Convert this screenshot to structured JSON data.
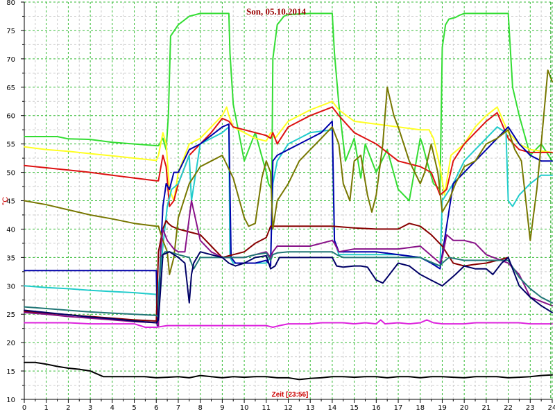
{
  "chart_data": {
    "type": "line",
    "title": "Son, 05.10.2014",
    "ylabel": "°C",
    "xlabel": "Zeit [23:56]",
    "xlim": [
      0,
      24
    ],
    "ylim": [
      10,
      80
    ],
    "x_ticks": [
      "0",
      "1",
      "2",
      "3",
      "4",
      "5",
      "6",
      "7",
      "8",
      "9",
      "10",
      "11",
      "12",
      "13",
      "14",
      "15",
      "16",
      "17",
      "18",
      "19",
      "20",
      "21",
      "22",
      "23",
      "24"
    ],
    "y_ticks": [
      "10",
      "15",
      "20",
      "25",
      "30",
      "35",
      "40",
      "45",
      "50",
      "55",
      "60",
      "65",
      "70",
      "75",
      "80"
    ],
    "grid": true,
    "colors": {
      "title": "#990000",
      "ylabel": "#cc0000",
      "xlabel": "#cc0000",
      "grid_major": "#33bb33",
      "grid_minor": "#cccccc",
      "axis": "#000000",
      "cursor": "#009900"
    },
    "series": [
      {
        "color": "#33dd33",
        "x": [
          0,
          1.5,
          2,
          3,
          4,
          5,
          6,
          6.1,
          6.3,
          6.45,
          6.55,
          6.65,
          7,
          7.5,
          8,
          8.5,
          9,
          9.3,
          9.35,
          9.5,
          10,
          10.5,
          11,
          11.1,
          11.25,
          11.3,
          11.5,
          11.8,
          12,
          13,
          14,
          14.1,
          14.3,
          14.6,
          15,
          15.3,
          15.5,
          16,
          16.5,
          17,
          17.5,
          18,
          18.1,
          18.3,
          18.6,
          18.9,
          19,
          19.15,
          19.3,
          19.6,
          19.8,
          20,
          21,
          21.5,
          22,
          22.2,
          22.5,
          23,
          23.5,
          24
        ],
        "y": [
          56.3,
          56.3,
          55.9,
          55.8,
          55.3,
          55,
          54.7,
          54.7,
          56,
          54,
          60,
          74,
          76,
          77.5,
          78,
          78,
          78,
          78,
          71,
          62,
          52,
          57,
          50,
          48,
          47,
          70,
          76,
          77.5,
          77.8,
          78,
          78,
          71,
          62,
          52,
          56,
          49,
          55,
          50,
          54,
          47,
          45,
          56,
          55,
          52,
          48,
          47,
          72,
          76,
          77,
          77.3,
          77.7,
          78,
          78,
          78,
          78,
          65,
          60,
          53,
          55,
          52
        ]
      },
      {
        "color": "#ffff22",
        "x": [
          0,
          1,
          2,
          3,
          4,
          5,
          6,
          6.1,
          6.3,
          6.45,
          6.6,
          6.8,
          7,
          7.5,
          8,
          8.5,
          9,
          9.2,
          9.3,
          9.5,
          10,
          10.5,
          11,
          11.2,
          11.4,
          12,
          13,
          14,
          14.3,
          15,
          16,
          17,
          18,
          18.4,
          18.6,
          18.9,
          19.1,
          19.4,
          20,
          20.5,
          21,
          21.5,
          22,
          22.5,
          23,
          24
        ],
        "y": [
          54.5,
          54,
          53.7,
          53.3,
          52.9,
          52.5,
          52.1,
          53,
          57,
          55,
          47,
          45,
          50,
          55,
          56,
          58,
          60,
          61.5,
          60,
          58,
          57,
          56,
          55.5,
          57,
          56,
          59,
          61,
          62.5,
          61,
          59,
          58.5,
          58,
          57.5,
          57.5,
          56,
          51,
          46,
          53,
          55,
          58,
          60,
          61.5,
          57,
          55,
          54,
          53.5
        ]
      },
      {
        "color": "#dd1111",
        "x": [
          0,
          1,
          2,
          3,
          4,
          5,
          6,
          6.1,
          6.3,
          6.45,
          6.6,
          6.8,
          7,
          7.5,
          8,
          8.5,
          9,
          9.3,
          9.5,
          10,
          10.5,
          11,
          11.2,
          11.3,
          11.5,
          12,
          13,
          14,
          14.3,
          15,
          15.5,
          16,
          17,
          18,
          18.5,
          18.9,
          19.2,
          19.5,
          20,
          20.5,
          21,
          21.5,
          22,
          22.5,
          23,
          24
        ],
        "y": [
          51.2,
          50.8,
          50.4,
          50,
          49.5,
          49,
          48.5,
          48.5,
          53,
          51,
          44,
          45,
          48,
          53,
          55,
          57,
          59.5,
          59,
          58,
          57.5,
          57,
          56.5,
          56,
          57,
          55,
          58,
          60,
          61.5,
          60,
          57,
          56,
          55,
          52,
          51,
          50,
          46,
          47,
          52,
          55,
          57,
          59,
          60.5,
          56,
          54,
          53.5,
          53.5
        ]
      },
      {
        "color": "#22cccc",
        "x": [
          0,
          1,
          2,
          3,
          4,
          5,
          6,
          6.05,
          6.1,
          6.2,
          6.3,
          6.5,
          6.7,
          7,
          7.2,
          7.5,
          7.6,
          8,
          8.5,
          9,
          9.3,
          9.35,
          9.5,
          10,
          10.5,
          11,
          11.2,
          11.3,
          11.5,
          12,
          12.5,
          13,
          14,
          14.1,
          14.3,
          14.6,
          15,
          16,
          17,
          18,
          18.5,
          18.9,
          19,
          19.5,
          20,
          20.5,
          21,
          21.5,
          21.9,
          22,
          22.2,
          22.5,
          23,
          23.5,
          24
        ],
        "y": [
          30,
          29.7,
          29.5,
          29.2,
          29,
          28.8,
          28.5,
          23,
          30,
          33,
          37,
          44,
          47,
          48,
          50,
          53,
          45,
          55,
          56,
          57,
          58,
          35,
          34,
          34,
          34,
          34,
          35,
          48,
          52,
          55,
          56,
          57,
          57.5,
          38,
          35.5,
          35.5,
          35.5,
          35.5,
          35.5,
          35,
          34,
          33.5,
          45,
          48,
          52,
          54,
          56,
          58,
          57,
          45,
          44,
          46,
          48,
          49.5,
          49.5
        ]
      },
      {
        "color": "#0000aa",
        "x": [
          0,
          6.0,
          6.05,
          6.1,
          6.2,
          6.3,
          6.45,
          6.6,
          6.8,
          7,
          7.5,
          8,
          8.5,
          9,
          9.3,
          9.4,
          9.6,
          10,
          10.5,
          11,
          11.2,
          11.3,
          11.5,
          12,
          12.5,
          13,
          13.5,
          14,
          14.1,
          14.3,
          14.6,
          15,
          16,
          17,
          18,
          18.5,
          18.9,
          19.1,
          19.5,
          20,
          20.5,
          21,
          21.5,
          22,
          22.5,
          23,
          23.5,
          24
        ],
        "y": [
          32.7,
          32.7,
          23,
          26,
          36,
          44,
          48,
          47,
          50,
          50,
          54,
          55,
          56.5,
          58,
          58.5,
          35,
          34,
          34,
          34,
          34.5,
          33.5,
          52,
          53,
          54,
          55,
          56,
          57,
          59,
          38,
          36,
          36,
          36,
          36,
          35.5,
          35,
          34,
          33,
          38,
          48,
          50,
          52,
          54,
          56,
          58,
          55,
          53,
          52,
          52
        ]
      },
      {
        "color": "#880000",
        "x": [
          0,
          1,
          2,
          3,
          4,
          5,
          6,
          6.1,
          6.3,
          6.45,
          6.55,
          6.7,
          7,
          7.5,
          8,
          8.5,
          9,
          9.5,
          10,
          10.5,
          11,
          11.2,
          11.5,
          12,
          13,
          14,
          15,
          16,
          17,
          17.5,
          18,
          18.5,
          19,
          19.5,
          20,
          20.5,
          21,
          21.5,
          22
        ],
        "y": [
          25.5,
          25.2,
          24.9,
          24.6,
          24.3,
          24,
          23.8,
          36,
          40,
          41.5,
          41,
          40.5,
          40,
          39.5,
          39,
          37,
          35,
          35.5,
          36,
          37.5,
          38.5,
          40.5,
          40.5,
          40.5,
          40.5,
          40.5,
          40.2,
          40,
          40,
          41,
          40.5,
          39,
          37,
          34,
          33.5,
          33.8,
          34,
          34.5,
          35
        ]
      },
      {
        "color": "#777700",
        "x": [
          0,
          1,
          2,
          3,
          4,
          5,
          6,
          6.1,
          6.3,
          6.5,
          6.6,
          6.8,
          7,
          7.5,
          8,
          8.5,
          9,
          9.5,
          10,
          10.2,
          10.5,
          10.8,
          11,
          11.2,
          11.3,
          11.5,
          12,
          12.5,
          13,
          13.5,
          14,
          14.3,
          14.5,
          14.8,
          15,
          15.3,
          15.6,
          15.8,
          16,
          16.3,
          16.5,
          16.8,
          17,
          17.5,
          18,
          18.2,
          18.5,
          18.8,
          19,
          19.3,
          19.6,
          20,
          20.5,
          21,
          21.5,
          22,
          22.3,
          22.6,
          23,
          23.3,
          23.5,
          23.8,
          24
        ],
        "y": [
          45,
          44.3,
          43.4,
          42.5,
          41.8,
          41,
          40.5,
          40.5,
          38,
          36,
          32,
          35,
          42,
          48,
          51,
          52,
          53,
          49,
          42,
          40.5,
          41,
          49,
          52,
          50,
          40,
          45,
          48,
          52,
          54,
          56,
          58,
          55,
          48,
          45,
          52,
          53,
          46,
          43,
          46,
          55,
          65,
          60,
          58,
          52,
          48,
          50,
          55,
          50,
          43,
          45,
          48,
          51,
          52,
          55,
          56,
          57.5,
          54,
          52,
          38,
          47,
          55,
          68,
          66
        ]
      },
      {
        "color": "#881188",
        "x": [
          0,
          1,
          2,
          3,
          4,
          5,
          6,
          6.1,
          6.2,
          6.3,
          6.5,
          6.8,
          7,
          7.3,
          7.5,
          7.6,
          8,
          8.5,
          9,
          9.5,
          10,
          10.5,
          11,
          11.2,
          11.3,
          11.5,
          12,
          13,
          14,
          14.1,
          14.3,
          15,
          16,
          17,
          18,
          18.9,
          19,
          19.2,
          19.5,
          20,
          20.5,
          21,
          22,
          22.5,
          23,
          24
        ],
        "y": [
          25.3,
          25,
          24.6,
          24.3,
          24,
          23.7,
          23.5,
          23,
          36,
          40,
          38,
          36.5,
          36,
          36,
          42,
          45,
          38,
          36,
          35,
          35,
          35,
          35.5,
          36,
          35,
          36,
          37,
          37,
          37,
          38,
          37.5,
          36,
          36.5,
          36.5,
          36.5,
          37,
          34,
          35,
          39,
          38,
          38,
          37.5,
          35.5,
          34,
          32,
          28,
          26.5
        ]
      },
      {
        "color": "#227777",
        "x": [
          0,
          1,
          2,
          3,
          4,
          5,
          6,
          6.1,
          6.2,
          6.4,
          6.6,
          7,
          7.5,
          7.7,
          8,
          9,
          10,
          10.5,
          11,
          11.2,
          11.3,
          11.5,
          12,
          13,
          14,
          14.2,
          14.5,
          15,
          16,
          17,
          18,
          18.9,
          19,
          19.3,
          20,
          21,
          21.5,
          22,
          22.5,
          23,
          23.5,
          24
        ],
        "y": [
          26.3,
          26,
          25.7,
          25.4,
          25.2,
          25,
          24.8,
          24.5,
          35,
          36,
          36,
          35.5,
          35,
          33,
          35,
          35,
          35,
          35.5,
          35.8,
          34.5,
          35.5,
          35.8,
          36,
          36,
          36,
          35.5,
          35,
          35,
          35,
          35,
          35,
          33.5,
          34,
          35,
          34.5,
          34.5,
          34.5,
          34.5,
          31.5,
          29.5,
          28,
          27
        ]
      },
      {
        "color": "#000066",
        "x": [
          0,
          1,
          2,
          3,
          4,
          5,
          6,
          6.1,
          6.3,
          6.6,
          7,
          7.3,
          7.5,
          7.6,
          7.7,
          8,
          8.5,
          9,
          9.3,
          9.6,
          10,
          10.5,
          11,
          11.2,
          11.4,
          11.6,
          12,
          12.5,
          13,
          14,
          14.2,
          14.5,
          15,
          15.3,
          15.6,
          16,
          16.3,
          16.6,
          17,
          17.5,
          18,
          18.5,
          19,
          19.3,
          19.6,
          20,
          20.5,
          21,
          21.3,
          21.7,
          22,
          22.5,
          23,
          23.5,
          24
        ],
        "y": [
          25.7,
          25.3,
          24.9,
          24.5,
          24.2,
          23.8,
          23.5,
          24,
          35.5,
          36,
          35,
          34,
          27,
          32,
          34,
          36,
          35.5,
          35,
          34,
          33.5,
          34,
          35,
          35.3,
          33,
          33.5,
          35,
          35,
          35,
          35,
          35,
          33.5,
          33.3,
          33.5,
          33.5,
          33.3,
          31,
          30.5,
          32,
          34,
          33.5,
          32,
          31,
          30,
          31,
          32,
          33.5,
          33,
          33,
          32,
          34,
          35,
          30,
          28,
          26.5,
          25.3
        ]
      },
      {
        "color": "#dd22dd",
        "x": [
          0,
          1,
          2,
          3,
          4,
          5,
          5.5,
          6,
          6.5,
          7,
          8,
          9,
          10,
          11,
          11.3,
          11.6,
          12,
          13,
          13.5,
          14,
          14.5,
          15,
          15.5,
          16,
          16.2,
          16.4,
          17,
          17.5,
          18,
          18.3,
          18.6,
          19,
          20,
          20.5,
          21,
          21.5,
          22,
          22.5,
          23,
          24
        ],
        "y": [
          23.5,
          23.5,
          23.5,
          23.3,
          23.3,
          23.3,
          22.7,
          22.7,
          23,
          23,
          23,
          23,
          23,
          23,
          22.7,
          23,
          23.3,
          23.3,
          23.5,
          23.5,
          23.5,
          23.3,
          23.5,
          23.3,
          24,
          23.3,
          23.5,
          23.3,
          23.5,
          24,
          23.5,
          23.3,
          23.3,
          23.5,
          23.5,
          23.5,
          23.5,
          23.5,
          23.3,
          23.3
        ]
      },
      {
        "color": "#000000",
        "x": [
          0,
          0.5,
          1,
          1.5,
          2,
          2.5,
          3,
          3.3,
          3.6,
          4,
          4.5,
          5,
          5.5,
          6,
          6.5,
          7,
          7.5,
          8,
          8.5,
          9,
          9.5,
          10,
          10.5,
          11,
          11.5,
          12,
          12.5,
          13,
          13.5,
          14,
          14.5,
          15,
          15.5,
          16,
          16.5,
          17,
          17.5,
          18,
          18.5,
          19,
          19.5,
          20,
          20.5,
          21,
          21.5,
          22,
          22.5,
          23,
          23.5,
          24
        ],
        "y": [
          16.5,
          16.5,
          16.2,
          15.8,
          15.5,
          15.3,
          15,
          14.5,
          14,
          14,
          14,
          14,
          14,
          13.8,
          13.9,
          14,
          13.8,
          14.2,
          14,
          13.8,
          14,
          13.9,
          14,
          14,
          13.8,
          13.8,
          13.5,
          13.7,
          13.8,
          14,
          14,
          13.9,
          14,
          14,
          13.8,
          14,
          14,
          13.8,
          14,
          14,
          13.9,
          13.8,
          14,
          14,
          14,
          13.8,
          13.9,
          14,
          14.2,
          14.3
        ]
      }
    ]
  }
}
